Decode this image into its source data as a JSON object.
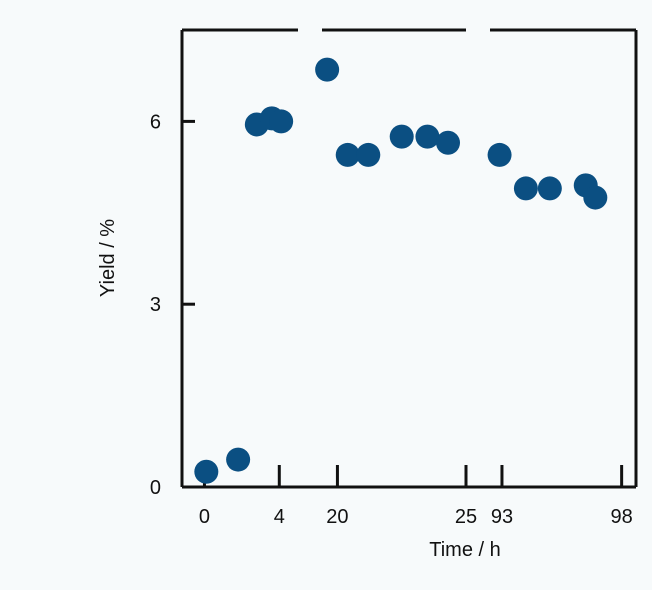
{
  "chart_data": {
    "type": "scatter",
    "title": "",
    "xlabel": "Time / h",
    "ylabel": "Yield / %",
    "ylim": [
      0,
      7.5
    ],
    "y_ticks": [
      0,
      3,
      6
    ],
    "grid": false,
    "legend": "none",
    "broken_x_axis": true,
    "colors": {
      "marker": "#0b4f82",
      "axis": "#111111",
      "background": "#f7fafb"
    },
    "segments": [
      {
        "xlim": [
          -1.2,
          5
        ],
        "x_ticks": [
          0,
          4
        ],
        "points": [
          {
            "x": 0.1,
            "y": 0.25
          },
          {
            "x": 1.8,
            "y": 0.45
          },
          {
            "x": 2.8,
            "y": 5.95
          },
          {
            "x": 3.6,
            "y": 6.05
          },
          {
            "x": 4.1,
            "y": 6.0
          }
        ]
      },
      {
        "xlim": [
          19.4,
          25
        ],
        "x_ticks": [
          20,
          25
        ],
        "points": [
          {
            "x": 19.6,
            "y": 6.85
          },
          {
            "x": 20.4,
            "y": 5.45
          },
          {
            "x": 21.2,
            "y": 5.45
          },
          {
            "x": 22.5,
            "y": 5.75
          },
          {
            "x": 23.5,
            "y": 5.75
          },
          {
            "x": 24.3,
            "y": 5.65
          }
        ]
      },
      {
        "xlim": [
          92.5,
          98.6
        ],
        "x_ticks": [
          93,
          98
        ],
        "points": [
          {
            "x": 92.9,
            "y": 5.45
          },
          {
            "x": 94.0,
            "y": 4.9
          },
          {
            "x": 95.0,
            "y": 4.9
          },
          {
            "x": 96.5,
            "y": 4.95
          },
          {
            "x": 96.9,
            "y": 4.75
          }
        ]
      }
    ]
  }
}
